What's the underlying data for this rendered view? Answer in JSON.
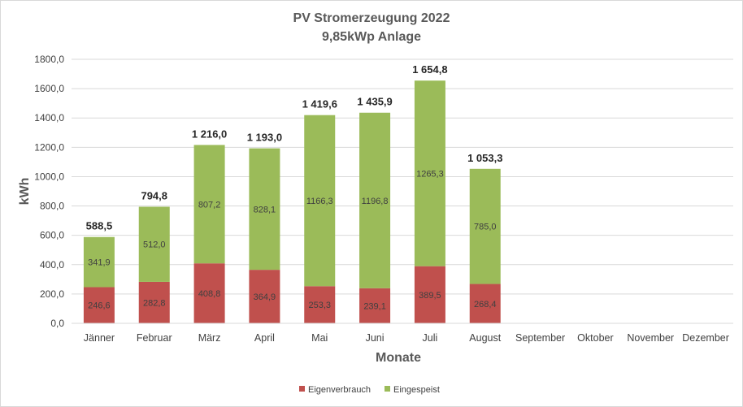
{
  "chart_data": {
    "type": "bar",
    "stacked": true,
    "title": "PV Stromerzeugung 2022",
    "subtitle": "9,85kWp Anlage",
    "xlabel": "Monate",
    "ylabel": "kWh",
    "ylim": [
      0,
      1800
    ],
    "ytick_step": 200,
    "yticks": [
      "0,0",
      "200,0",
      "400,0",
      "600,0",
      "800,0",
      "1000,0",
      "1200,0",
      "1400,0",
      "1600,0",
      "1800,0"
    ],
    "grid": true,
    "legend_position": "bottom",
    "categories": [
      "Jänner",
      "Februar",
      "März",
      "April",
      "Mai",
      "Juni",
      "Juli",
      "August",
      "September",
      "Oktober",
      "November",
      "Dezember"
    ],
    "series": [
      {
        "name": "Eigenverbrauch",
        "color": "#c0504d",
        "values": [
          246.6,
          282.8,
          408.8,
          364.9,
          253.3,
          239.1,
          389.5,
          268.4,
          null,
          null,
          null,
          null
        ],
        "labels": [
          "246,6",
          "282,8",
          "408,8",
          "364,9",
          "253,3",
          "239,1",
          "389,5",
          "268,4",
          "",
          "",
          "",
          ""
        ]
      },
      {
        "name": "Eingespeist",
        "color": "#9bbb59",
        "values": [
          341.9,
          512.0,
          807.2,
          828.1,
          1166.3,
          1196.8,
          1265.3,
          785.0,
          null,
          null,
          null,
          null
        ],
        "labels": [
          "341,9",
          "512,0",
          "807,2",
          "828,1",
          "1166,3",
          "1196,8",
          "1265,3",
          "785,0",
          "",
          "",
          "",
          ""
        ]
      }
    ],
    "totals": [
      588.5,
      794.8,
      1216.0,
      1193.0,
      1419.6,
      1435.9,
      1654.8,
      1053.3,
      null,
      null,
      null,
      null
    ],
    "total_labels": [
      "588,5",
      "794,8",
      "1 216,0",
      "1 193,0",
      "1 419,6",
      "1 435,9",
      "1 654,8",
      "1 053,3",
      "",
      "",
      "",
      ""
    ]
  }
}
